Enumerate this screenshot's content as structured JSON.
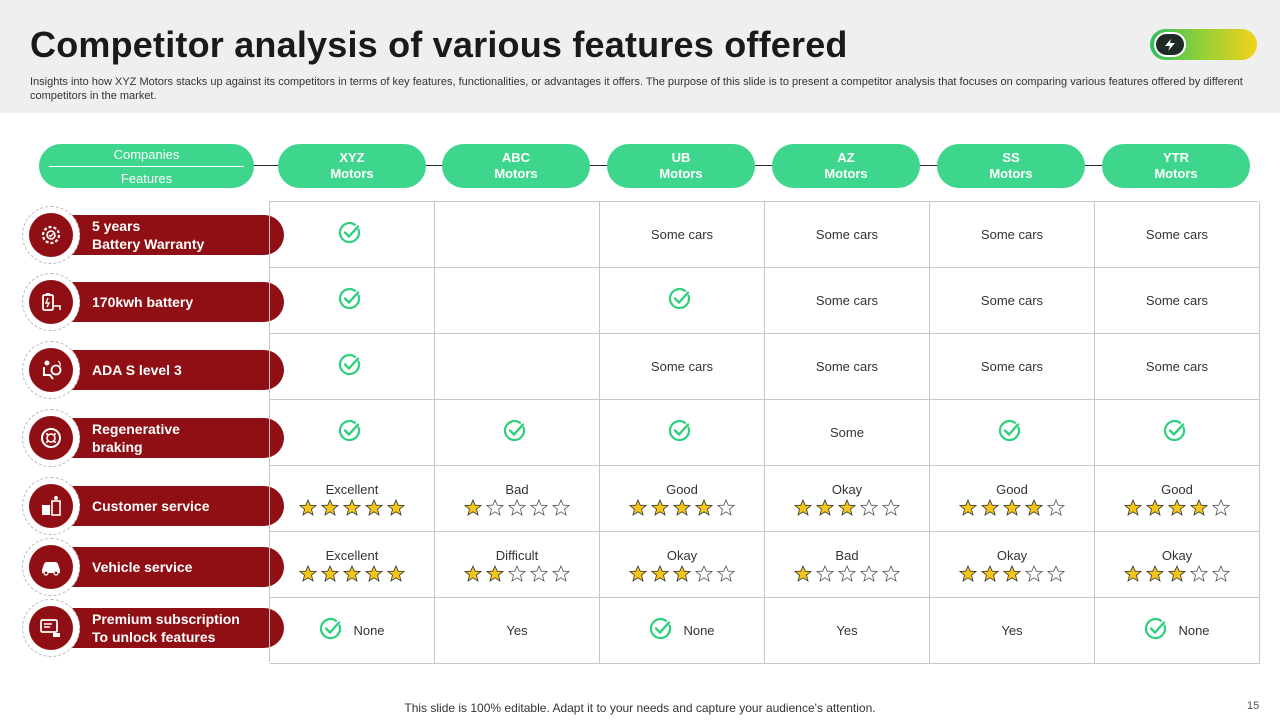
{
  "header": {
    "title": "Competitor analysis of various features offered",
    "subtitle": "Insights into how XYZ Motors stacks up against its competitors in terms of key features, functionalities, or advantages it offers. The purpose of this slide is to present a competitor analysis that focuses on comparing various features offered by different competitors in the market."
  },
  "table": {
    "corner": {
      "top": "Companies",
      "bottom": "Features"
    },
    "companies": [
      {
        "line1": "XYZ",
        "line2": "Motors"
      },
      {
        "line1": "ABC",
        "line2": "Motors"
      },
      {
        "line1": "UB",
        "line2": "Motors"
      },
      {
        "line1": "AZ",
        "line2": "Motors"
      },
      {
        "line1": "SS",
        "line2": "Motors"
      },
      {
        "line1": "YTR",
        "line2": "Motors"
      }
    ],
    "features": [
      {
        "label": "5 years\nBattery Warranty",
        "icon": "gear-warranty-icon"
      },
      {
        "label": "170kwh battery",
        "icon": "battery-icon"
      },
      {
        "label": "ADA S level 3",
        "icon": "driver-assist-icon"
      },
      {
        "label": "Regenerative\nbraking",
        "icon": "brake-disc-icon"
      },
      {
        "label": "Customer service",
        "icon": "customer-service-icon"
      },
      {
        "label": "Vehicle service",
        "icon": "car-icon"
      },
      {
        "label": "Premium subscription\nTo unlock features",
        "icon": "subscription-icon"
      }
    ],
    "rows": [
      [
        {
          "type": "check"
        },
        {
          "type": "empty"
        },
        {
          "type": "text",
          "text": "Some cars"
        },
        {
          "type": "text",
          "text": "Some cars"
        },
        {
          "type": "text",
          "text": "Some cars"
        },
        {
          "type": "text",
          "text": "Some cars"
        }
      ],
      [
        {
          "type": "check"
        },
        {
          "type": "empty"
        },
        {
          "type": "check"
        },
        {
          "type": "text",
          "text": "Some cars"
        },
        {
          "type": "text",
          "text": "Some cars"
        },
        {
          "type": "text",
          "text": "Some cars"
        }
      ],
      [
        {
          "type": "check"
        },
        {
          "type": "empty"
        },
        {
          "type": "text",
          "text": "Some cars"
        },
        {
          "type": "text",
          "text": "Some cars"
        },
        {
          "type": "text",
          "text": "Some cars"
        },
        {
          "type": "text",
          "text": "Some cars"
        }
      ],
      [
        {
          "type": "check"
        },
        {
          "type": "check"
        },
        {
          "type": "check"
        },
        {
          "type": "text",
          "text": "Some"
        },
        {
          "type": "check"
        },
        {
          "type": "check"
        }
      ],
      [
        {
          "type": "rating",
          "text": "Excellent",
          "stars": 5
        },
        {
          "type": "rating",
          "text": "Bad",
          "stars": 1
        },
        {
          "type": "rating",
          "text": "Good",
          "stars": 4
        },
        {
          "type": "rating",
          "text": "Okay",
          "stars": 3
        },
        {
          "type": "rating",
          "text": "Good",
          "stars": 4
        },
        {
          "type": "rating",
          "text": "Good",
          "stars": 4
        }
      ],
      [
        {
          "type": "rating",
          "text": "Excellent",
          "stars": 5
        },
        {
          "type": "rating",
          "text": "Difficult",
          "stars": 2
        },
        {
          "type": "rating",
          "text": "Okay",
          "stars": 3
        },
        {
          "type": "rating",
          "text": "Bad",
          "stars": 1
        },
        {
          "type": "rating",
          "text": "Okay",
          "stars": 3
        },
        {
          "type": "rating",
          "text": "Okay",
          "stars": 3
        }
      ],
      [
        {
          "type": "checktext",
          "text": "None"
        },
        {
          "type": "text",
          "text": "Yes"
        },
        {
          "type": "checktext",
          "text": "None"
        },
        {
          "type": "text",
          "text": "Yes"
        },
        {
          "type": "text",
          "text": "Yes"
        },
        {
          "type": "checktext",
          "text": "None"
        }
      ]
    ],
    "max_stars": 5
  },
  "footer": {
    "note": "This slide is 100% editable. Adapt it to your needs and capture your audience's attention.",
    "page_number": "15"
  },
  "colors": {
    "accent_green": "#3dd68c",
    "check_green": "#2fcf7e",
    "feature_red": "#8f0f14",
    "star_fill": "#f5c518"
  }
}
